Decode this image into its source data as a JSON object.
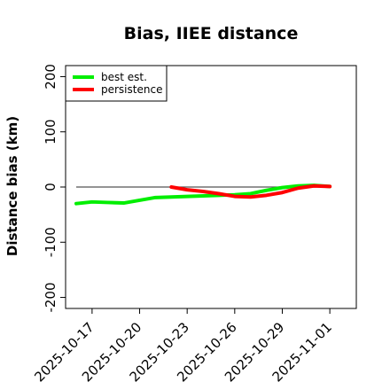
{
  "chart_data": {
    "type": "line",
    "title": "Bias, IIEE distance",
    "xlabel": "",
    "ylabel": "Distance bias (km)",
    "ylim": [
      -220,
      220
    ],
    "yticks": [
      -200,
      -100,
      0,
      100,
      200
    ],
    "yticks_labels": [
      "-200",
      "-100",
      "0",
      "100",
      "200"
    ],
    "xlim": [
      "2025-10-16",
      "2025-11-02"
    ],
    "xticks": [
      "2025-10-17",
      "2025-10-20",
      "2025-10-23",
      "2025-10-26",
      "2025-10-29",
      "2025-11-01"
    ],
    "reference_line": {
      "y": 0,
      "from": "2025-10-16",
      "to": "2025-11-01",
      "color": "#555555"
    },
    "legend": {
      "placement": "top-left"
    },
    "grid": false,
    "series": [
      {
        "name": "best est.",
        "color": "#00ee00",
        "x": [
          "2025-10-16",
          "2025-10-17",
          "2025-10-18",
          "2025-10-19",
          "2025-10-20",
          "2025-10-21",
          "2025-10-22",
          "2025-10-23",
          "2025-10-24",
          "2025-10-25",
          "2025-10-26",
          "2025-10-27",
          "2025-10-28",
          "2025-10-29",
          "2025-10-30",
          "2025-10-31",
          "2025-11-01"
        ],
        "values": [
          -30,
          -27,
          -28,
          -29,
          -24,
          -19,
          -18,
          -17,
          -16,
          -15,
          -14,
          -12,
          -6,
          -1,
          2,
          3,
          1
        ]
      },
      {
        "name": "persistence",
        "color": "#ff0000",
        "x": [
          "2025-10-22",
          "2025-10-23",
          "2025-10-24",
          "2025-10-25",
          "2025-10-26",
          "2025-10-27",
          "2025-10-28",
          "2025-10-29",
          "2025-10-30",
          "2025-10-31",
          "2025-11-01"
        ],
        "values": [
          0,
          -5,
          -8,
          -12,
          -17,
          -18,
          -15,
          -10,
          -2,
          2,
          1
        ]
      }
    ]
  }
}
